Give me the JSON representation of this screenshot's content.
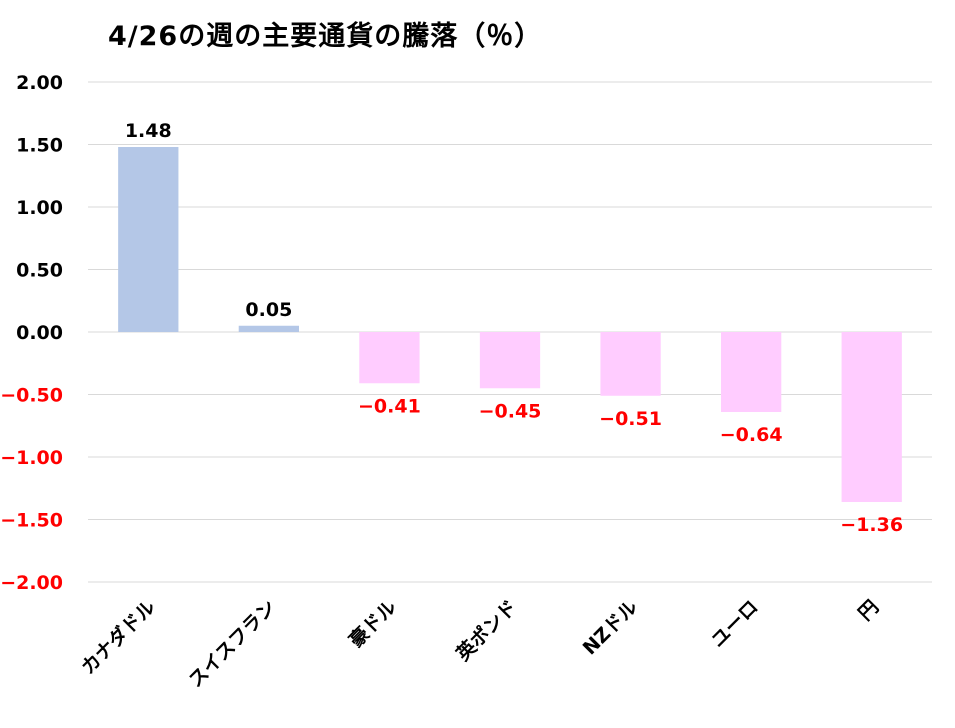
{
  "chart_data": {
    "type": "bar",
    "title": "4/26の週の主要通貨の騰落（％）",
    "categories": [
      "カナダドル",
      "スイスフラン",
      "豪ドル",
      "英ポンド",
      "NZドル",
      "ユーロ",
      "円"
    ],
    "values": [
      1.48,
      0.05,
      -0.41,
      -0.45,
      -0.51,
      -0.64,
      -1.36
    ],
    "value_labels": [
      "1.48",
      "0.05",
      "−0.41",
      "−0.45",
      "−0.51",
      "−0.64",
      "−1.36"
    ],
    "ylim": [
      -2.0,
      2.0
    ],
    "yticks": [
      2.0,
      1.5,
      1.0,
      0.5,
      0.0,
      -0.5,
      -1.0,
      -1.5,
      -2.0
    ],
    "ytick_labels": [
      "2.00",
      "1.50",
      "1.00",
      "0.50",
      "0.00",
      "−0.50",
      "−1.00",
      "−1.50",
      "−2.00"
    ],
    "grid": true,
    "legend": "none",
    "colors": {
      "positive_bar": "#b4c7e7",
      "negative_bar": "#ffccff",
      "positive_text": "#000000",
      "negative_text": "#ff0000",
      "gridline": "#d9d9d9"
    }
  }
}
